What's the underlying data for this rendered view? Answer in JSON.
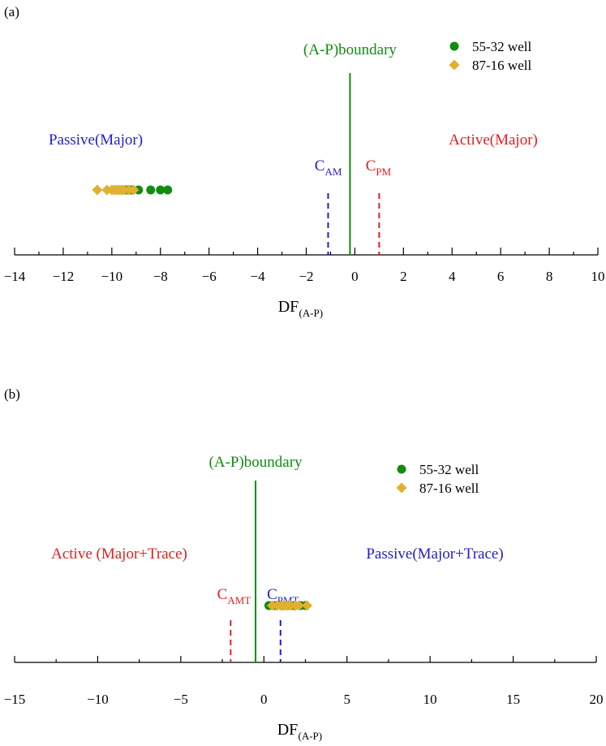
{
  "colors": {
    "green": "#118C11",
    "gold": "#E0B030",
    "blue": "#1F1FCC",
    "red": "#E02020",
    "axis": "#000000"
  },
  "chart_data": [
    {
      "panel_label": "(a)",
      "type": "scatter",
      "xlabel": "DF",
      "xlabel_sub": "(A-P)",
      "xlim": [
        -14,
        10
      ],
      "xticks": [
        -14,
        -12,
        -10,
        -8,
        -6,
        -4,
        -2,
        0,
        2,
        4,
        6,
        8,
        10
      ],
      "tick_labels": [
        "−14",
        "−12",
        "−10",
        "−8",
        "−6",
        "−4",
        "−2",
        "0",
        "2",
        "4",
        "6",
        "8",
        "10"
      ],
      "legend": [
        {
          "name": "55-32 well",
          "marker": "circle",
          "color": "#118C11"
        },
        {
          "name": "87-16 well",
          "marker": "diamond",
          "color": "#E0B030"
        }
      ],
      "boundary": {
        "label": "(A-P)boundary",
        "x": -0.2,
        "color": "#118C11"
      },
      "cutoffs": [
        {
          "label_main": "C",
          "label_sub": "AM",
          "x": -1.1,
          "color": "#1F1FCC"
        },
        {
          "label_main": "C",
          "label_sub": "PM",
          "x": 1.0,
          "color": "#E02020"
        }
      ],
      "regions": [
        {
          "label": "Passive(Major)",
          "color": "#1F1FCC",
          "side": "left"
        },
        {
          "label": "Active(Major)",
          "color": "#E02020",
          "side": "right"
        }
      ],
      "series": [
        {
          "name": "55-32 well",
          "marker": "circle",
          "color": "#118C11",
          "x": [
            -9.8,
            -9.6,
            -9.4,
            -9.2,
            -8.9,
            -8.4,
            -8.0,
            -7.7
          ]
        },
        {
          "name": "87-16 well",
          "marker": "diamond",
          "color": "#E0B030",
          "x": [
            -10.6,
            -10.2,
            -10.0,
            -9.9,
            -9.8,
            -9.7,
            -9.6,
            -9.5,
            -9.3,
            -9.1
          ]
        }
      ]
    },
    {
      "panel_label": "(b)",
      "type": "scatter",
      "xlabel": "DF",
      "xlabel_sub": "(A-P)",
      "xlim": [
        -15,
        20
      ],
      "xticks": [
        -15,
        -10,
        -5,
        0,
        5,
        10,
        15,
        20
      ],
      "tick_labels": [
        "−15",
        "−10",
        "−5",
        "0",
        "5",
        "10",
        "15",
        "20"
      ],
      "legend": [
        {
          "name": "55-32 well",
          "marker": "circle",
          "color": "#118C11"
        },
        {
          "name": "87-16 well",
          "marker": "diamond",
          "color": "#E0B030"
        }
      ],
      "boundary": {
        "label": "(A-P)boundary",
        "x": -0.5,
        "color": "#118C11"
      },
      "cutoffs": [
        {
          "label_main": "C",
          "label_sub": "AMT",
          "x": -2.0,
          "color": "#E02020"
        },
        {
          "label_main": "C",
          "label_sub": "PMT",
          "x": 1.0,
          "color": "#1F1FCC"
        }
      ],
      "regions": [
        {
          "label": "Active (Major+Trace)",
          "color": "#E02020",
          "side": "left"
        },
        {
          "label": "Passive(Major+Trace)",
          "color": "#1F1FCC",
          "side": "right"
        }
      ],
      "series": [
        {
          "name": "55-32 well",
          "marker": "circle",
          "color": "#118C11",
          "x": [
            0.3,
            0.7,
            1.1,
            1.4,
            1.8,
            2.2,
            2.5
          ]
        },
        {
          "name": "87-16 well",
          "marker": "diamond",
          "color": "#E0B030",
          "x": [
            0.5,
            0.8,
            1.0,
            1.2,
            1.4,
            1.6,
            1.9,
            2.1,
            2.6
          ]
        }
      ]
    }
  ]
}
